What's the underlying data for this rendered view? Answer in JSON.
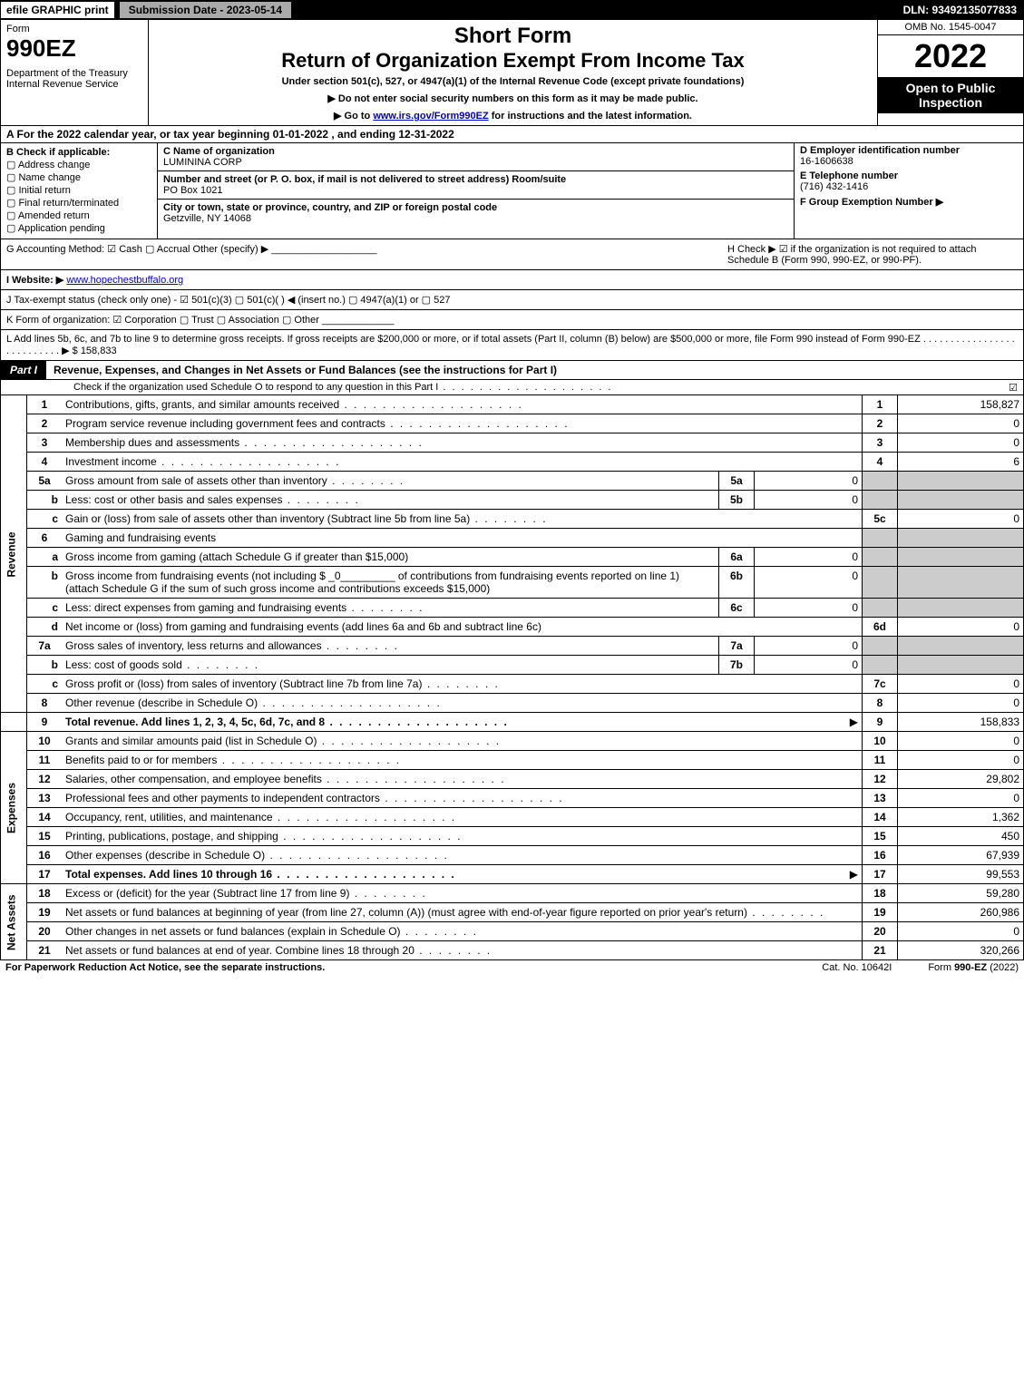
{
  "topbar": {
    "efile": "efile GRAPHIC print",
    "submission": "Submission Date - 2023-05-14",
    "dln": "DLN: 93492135077833"
  },
  "header": {
    "form_label": "Form",
    "form_number": "990EZ",
    "dept": "Department of the Treasury\nInternal Revenue Service",
    "short_form": "Short Form",
    "return_title": "Return of Organization Exempt From Income Tax",
    "under_section": "Under section 501(c), 527, or 4947(a)(1) of the Internal Revenue Code (except private foundations)",
    "no_ssn": "▶ Do not enter social security numbers on this form as it may be made public.",
    "goto": "▶ Go to www.irs.gov/Form990EZ for instructions and the latest information.",
    "goto_pre": "▶ Go to ",
    "goto_link": "www.irs.gov/Form990EZ",
    "goto_post": " for instructions and the latest information.",
    "omb": "OMB No. 1545-0047",
    "year": "2022",
    "open": "Open to Public Inspection"
  },
  "lineA": "A  For the 2022 calendar year, or tax year beginning 01-01-2022 , and ending 12-31-2022",
  "B": {
    "hdr": "B  Check if applicable:",
    "items": [
      "Address change",
      "Name change",
      "Initial return",
      "Final return/terminated",
      "Amended return",
      "Application pending"
    ]
  },
  "C": {
    "name_lbl": "C Name of organization",
    "name": "LUMININA CORP",
    "addr_lbl": "Number and street (or P. O. box, if mail is not delivered to street address)     Room/suite",
    "addr": "PO Box 1021",
    "city_lbl": "City or town, state or province, country, and ZIP or foreign postal code",
    "city": "Getzville, NY  14068"
  },
  "DEF": {
    "d_lbl": "D Employer identification number",
    "d_val": "16-1606638",
    "e_lbl": "E Telephone number",
    "e_val": "(716) 432-1416",
    "f_lbl": "F Group Exemption Number  ▶"
  },
  "G": "G Accounting Method:   ☑ Cash   ▢ Accrual   Other (specify) ▶ ___________________",
  "H": "H   Check ▶ ☑ if the organization is not required to attach Schedule B (Form 990, 990-EZ, or 990-PF).",
  "I_pre": "I Website: ▶",
  "I_link": "www.hopechestbuffalo.org",
  "J": "J Tax-exempt status (check only one) - ☑ 501(c)(3)  ▢ 501(c)(  ) ◀ (insert no.)  ▢ 4947(a)(1) or  ▢ 527",
  "K": "K Form of organization:   ☑ Corporation   ▢ Trust   ▢ Association   ▢ Other  _____________",
  "L": "L Add lines 5b, 6c, and 7b to line 9 to determine gross receipts. If gross receipts are $200,000 or more, or if total assets (Part II, column (B) below) are $500,000 or more, file Form 990 instead of Form 990-EZ  .  .  .  .  .  .  .  .  .  .  .  .  .  .  .  .  .  .  .  .  .  .  .  .  .  .  .  ▶ $ 158,833",
  "part1": {
    "tab": "Part I",
    "title": "Revenue, Expenses, and Changes in Net Assets or Fund Balances (see the instructions for Part I)",
    "sub": "Check if the organization used Schedule O to respond to any question in this Part I",
    "check": "☑"
  },
  "sections": {
    "revenue": "Revenue",
    "expenses": "Expenses",
    "netassets": "Net Assets"
  },
  "lines": {
    "l1": {
      "n": "1",
      "d": "Contributions, gifts, grants, and similar amounts received",
      "rn": "1",
      "rv": "158,827"
    },
    "l2": {
      "n": "2",
      "d": "Program service revenue including government fees and contracts",
      "rn": "2",
      "rv": "0"
    },
    "l3": {
      "n": "3",
      "d": "Membership dues and assessments",
      "rn": "3",
      "rv": "0"
    },
    "l4": {
      "n": "4",
      "d": "Investment income",
      "rn": "4",
      "rv": "6"
    },
    "l5a": {
      "n": "5a",
      "d": "Gross amount from sale of assets other than inventory",
      "in": "5a",
      "iv": "0"
    },
    "l5b": {
      "n": "b",
      "d": "Less: cost or other basis and sales expenses",
      "in": "5b",
      "iv": "0"
    },
    "l5c": {
      "n": "c",
      "d": "Gain or (loss) from sale of assets other than inventory (Subtract line 5b from line 5a)",
      "rn": "5c",
      "rv": "0"
    },
    "l6": {
      "n": "6",
      "d": "Gaming and fundraising events"
    },
    "l6a": {
      "n": "a",
      "d": "Gross income from gaming (attach Schedule G if greater than $15,000)",
      "in": "6a",
      "iv": "0"
    },
    "l6b": {
      "n": "b",
      "d": "Gross income from fundraising events (not including $ _0_________ of contributions from fundraising events reported on line 1) (attach Schedule G if the sum of such gross income and contributions exceeds $15,000)",
      "in": "6b",
      "iv": "0"
    },
    "l6c": {
      "n": "c",
      "d": "Less: direct expenses from gaming and fundraising events",
      "in": "6c",
      "iv": "0"
    },
    "l6d": {
      "n": "d",
      "d": "Net income or (loss) from gaming and fundraising events (add lines 6a and 6b and subtract line 6c)",
      "rn": "6d",
      "rv": "0"
    },
    "l7a": {
      "n": "7a",
      "d": "Gross sales of inventory, less returns and allowances",
      "in": "7a",
      "iv": "0"
    },
    "l7b": {
      "n": "b",
      "d": "Less: cost of goods sold",
      "in": "7b",
      "iv": "0"
    },
    "l7c": {
      "n": "c",
      "d": "Gross profit or (loss) from sales of inventory (Subtract line 7b from line 7a)",
      "rn": "7c",
      "rv": "0"
    },
    "l8": {
      "n": "8",
      "d": "Other revenue (describe in Schedule O)",
      "rn": "8",
      "rv": "0"
    },
    "l9": {
      "n": "9",
      "d": "Total revenue. Add lines 1, 2, 3, 4, 5c, 6d, 7c, and 8",
      "rn": "9",
      "rv": "158,833",
      "arrow": "▶"
    },
    "l10": {
      "n": "10",
      "d": "Grants and similar amounts paid (list in Schedule O)",
      "rn": "10",
      "rv": "0"
    },
    "l11": {
      "n": "11",
      "d": "Benefits paid to or for members",
      "rn": "11",
      "rv": "0"
    },
    "l12": {
      "n": "12",
      "d": "Salaries, other compensation, and employee benefits",
      "rn": "12",
      "rv": "29,802"
    },
    "l13": {
      "n": "13",
      "d": "Professional fees and other payments to independent contractors",
      "rn": "13",
      "rv": "0"
    },
    "l14": {
      "n": "14",
      "d": "Occupancy, rent, utilities, and maintenance",
      "rn": "14",
      "rv": "1,362"
    },
    "l15": {
      "n": "15",
      "d": "Printing, publications, postage, and shipping",
      "rn": "15",
      "rv": "450"
    },
    "l16": {
      "n": "16",
      "d": "Other expenses (describe in Schedule O)",
      "rn": "16",
      "rv": "67,939"
    },
    "l17": {
      "n": "17",
      "d": "Total expenses. Add lines 10 through 16",
      "rn": "17",
      "rv": "99,553",
      "arrow": "▶"
    },
    "l18": {
      "n": "18",
      "d": "Excess or (deficit) for the year (Subtract line 17 from line 9)",
      "rn": "18",
      "rv": "59,280"
    },
    "l19": {
      "n": "19",
      "d": "Net assets or fund balances at beginning of year (from line 27, column (A)) (must agree with end-of-year figure reported on prior year's return)",
      "rn": "19",
      "rv": "260,986"
    },
    "l20": {
      "n": "20",
      "d": "Other changes in net assets or fund balances (explain in Schedule O)",
      "rn": "20",
      "rv": "0"
    },
    "l21": {
      "n": "21",
      "d": "Net assets or fund balances at end of year. Combine lines 18 through 20",
      "rn": "21",
      "rv": "320,266"
    }
  },
  "footer": {
    "l": "For Paperwork Reduction Act Notice, see the separate instructions.",
    "m": "Cat. No. 10642I",
    "r_pre": "Form ",
    "r_b": "990-EZ",
    "r_post": " (2022)"
  }
}
